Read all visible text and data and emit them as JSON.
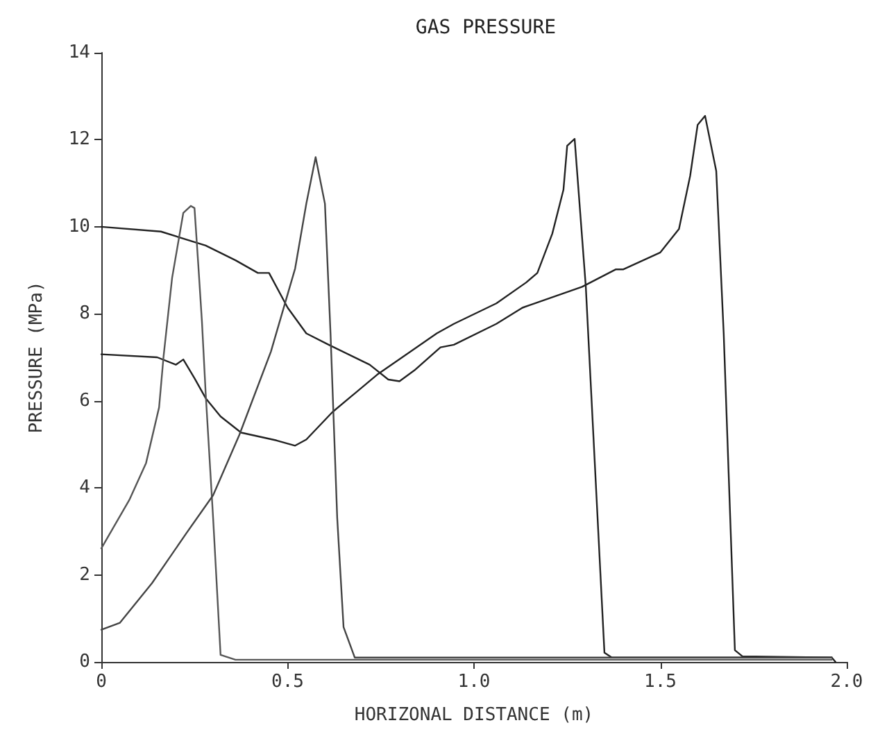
{
  "chart_data": {
    "type": "line",
    "title": "GAS PRESSURE",
    "xlabel": "HORIZONAL DISTANCE (m)",
    "ylabel": "PRESSURE (MPa)",
    "xlim": [
      0,
      2
    ],
    "xticks": [
      0,
      0.5,
      {
        "value": 1,
        "label": "1.0"
      },
      1.5,
      {
        "value": 2,
        "label": "2.0"
      }
    ],
    "ylim": [
      0,
      14
    ],
    "yticks": [
      0,
      2,
      4,
      6,
      8,
      10,
      12,
      14
    ],
    "marker": "none",
    "line_style": "solid",
    "series": [
      {
        "color": "#222222",
        "x": [
          0,
          0.16,
          0.28,
          0.36,
          0.42,
          0.45,
          0.5,
          0.55,
          0.61,
          0.72,
          0.77,
          0.8,
          0.84,
          0.91,
          0.946,
          1.06,
          1.13,
          1.29,
          1.38,
          1.4,
          1.5,
          1.55,
          1.58,
          1.6,
          1.62,
          1.65,
          1.67,
          1.7,
          1.72,
          1.96,
          1.97
        ],
        "values": [
          10.0,
          9.89,
          9.57,
          9.23,
          8.94,
          8.94,
          8.14,
          7.55,
          7.29,
          6.83,
          6.49,
          6.45,
          6.7,
          7.23,
          7.29,
          7.77,
          8.14,
          8.62,
          9.02,
          9.02,
          9.41,
          9.95,
          11.17,
          12.34,
          12.55,
          11.28,
          7.55,
          0.27,
          0.13,
          0.1,
          0
        ]
      },
      {
        "color": "#222222",
        "x": [
          0,
          0.15,
          0.2,
          0.22,
          0.25,
          0.28,
          0.32,
          0.375,
          0.47,
          0.52,
          0.55,
          0.62,
          0.74,
          0.9,
          0.946,
          1.06,
          1.14,
          1.17,
          1.21,
          1.24,
          1.25,
          1.27,
          1.3,
          1.35,
          1.37,
          1.96
        ],
        "values": [
          7.07,
          7.0,
          6.83,
          6.95,
          6.52,
          6.06,
          5.64,
          5.27,
          5.09,
          4.97,
          5.11,
          5.74,
          6.6,
          7.55,
          7.77,
          8.24,
          8.72,
          8.94,
          9.84,
          10.85,
          11.86,
          12.02,
          8.62,
          0.21,
          0.1,
          0.1
        ]
      },
      {
        "color": "#555555",
        "x": [
          0,
          0.075,
          0.12,
          0.155,
          0.167,
          0.19,
          0.22,
          0.24,
          0.25,
          0.26,
          0.27,
          0.28,
          0.3,
          0.32,
          0.36,
          1.96
        ],
        "values": [
          2.61,
          3.72,
          4.57,
          5.85,
          7.02,
          8.83,
          10.32,
          10.48,
          10.43,
          9.15,
          7.82,
          6.17,
          3.3,
          0.16,
          0.05,
          0.05
        ]
      },
      {
        "color": "#444444",
        "x": [
          0,
          0.05,
          0.136,
          0.23,
          0.3,
          0.37,
          0.455,
          0.52,
          0.55,
          0.575,
          0.6,
          0.615,
          0.633,
          0.65,
          0.68,
          1.96
        ],
        "values": [
          0.74,
          0.9,
          1.81,
          2.98,
          3.83,
          5.21,
          7.13,
          9.04,
          10.53,
          11.6,
          10.53,
          7.55,
          3.3,
          0.8,
          0.1,
          0.1
        ]
      }
    ]
  }
}
